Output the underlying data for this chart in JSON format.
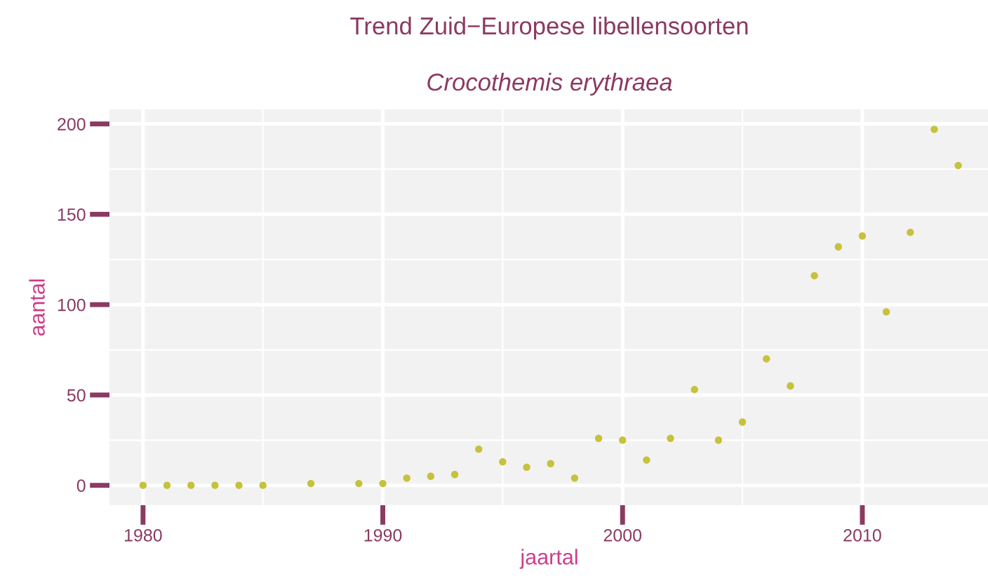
{
  "chart_data": {
    "type": "scatter",
    "title": "Trend Zuid−Europese libellensoorten",
    "subtitle": "Crocothemis erythraea",
    "xlabel": "jaartal",
    "ylabel": "aantal",
    "x": [
      1980,
      1981,
      1982,
      1983,
      1984,
      1985,
      1987,
      1989,
      1990,
      1991,
      1992,
      1993,
      1994,
      1995,
      1996,
      1997,
      1998,
      1999,
      2000,
      2001,
      2002,
      2003,
      2004,
      2005,
      2006,
      2007,
      2008,
      2009,
      2010,
      2011,
      2012,
      2013,
      2014
    ],
    "series": [
      {
        "color": "#c5c23c",
        "values": [
          0,
          0,
          0,
          0,
          0,
          0,
          1,
          1,
          1,
          4,
          5,
          6,
          20,
          13,
          10,
          12,
          4,
          26,
          25,
          14,
          26,
          53,
          25,
          35,
          70,
          55,
          116,
          132,
          138,
          96,
          140,
          197,
          177
        ]
      }
    ],
    "xlim": [
      1978.6,
      2015.3
    ],
    "ylim": [
      -11,
      208
    ],
    "xticks": [
      1980,
      1990,
      2000,
      2010
    ],
    "yticks": [
      0,
      50,
      100,
      150,
      200
    ],
    "grid": true,
    "marker": "circle"
  }
}
